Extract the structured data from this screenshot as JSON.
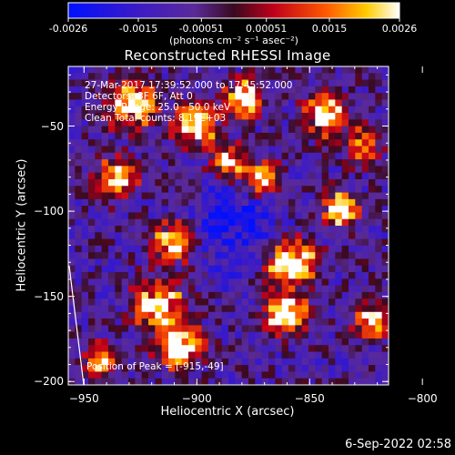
{
  "colorbar": {
    "ticks": [
      "-0.0026",
      "-0.0015",
      "-0.00051",
      "0.00051",
      "0.0015",
      "0.0026"
    ],
    "unit": "(photons cm⁻² s⁻¹ asec⁻²)",
    "range": [
      -0.0026,
      0.0026
    ]
  },
  "chart_data": {
    "type": "heatmap",
    "title": "Reconstructed RHESSI Image",
    "xlabel": "Heliocentric X (arcsec)",
    "ylabel": "Heliocentric Y (arcsec)",
    "xlim": [
      -957,
      -815
    ],
    "ylim": [
      -202,
      -15
    ],
    "xticks": [
      -950,
      -900,
      -850,
      -800
    ],
    "xtick_labels": [
      "−950",
      "−900",
      "−850",
      "−800"
    ],
    "yticks": [
      -50,
      -100,
      -150,
      -200
    ],
    "ytick_labels": [
      "−50",
      "−100",
      "−150",
      "−200"
    ],
    "colormap": "rhessi-blue-purple-red-yellow-white",
    "peak_position": [
      -915,
      -49
    ],
    "limb": "white curve along left edge"
  },
  "annotations": {
    "time_range": "27-Mar-2017 17:39:52.000 to 17:45:52.000",
    "detectors": "Detectors: 3F 6F, Att 0",
    "energy": "Energy Range: 25.0 - 50.0 keV",
    "clean": "Clean    Total counts: 8.19E+03",
    "peak": "Position of Peak = [-915,-49]"
  },
  "footer": {
    "timestamp": "6-Sep-2022 02:58"
  }
}
